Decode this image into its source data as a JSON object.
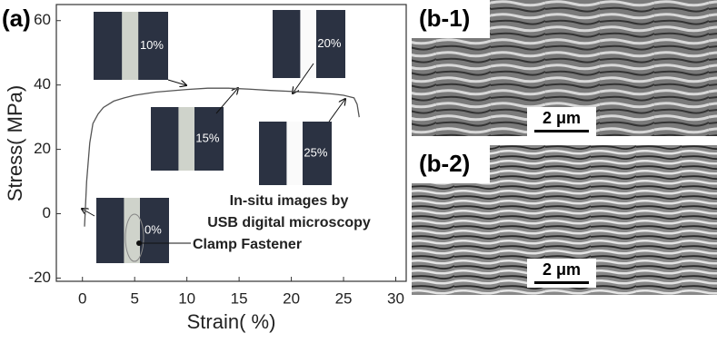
{
  "chart_data": {
    "type": "line",
    "panel_label": "(a)",
    "xlabel": "Strain( %)",
    "ylabel": "Stress( MPa)",
    "x": [
      0.2,
      0.4,
      0.7,
      1,
      1.5,
      2,
      3,
      4,
      5,
      7,
      10,
      12,
      14,
      16,
      18,
      20,
      22,
      24,
      25,
      26,
      26.3,
      26.5
    ],
    "values": [
      -4,
      10,
      22,
      28,
      31,
      33,
      35,
      36,
      36.8,
      37.8,
      38.6,
      39,
      39,
      38.7,
      38.3,
      38,
      37.7,
      37.2,
      36.8,
      36,
      34,
      30
    ],
    "color": "#555555",
    "xlim": [
      -2.5,
      31
    ],
    "ylim": [
      -21,
      65
    ],
    "xticks": [
      0,
      5,
      10,
      15,
      20,
      25,
      30
    ],
    "yticks": [
      -20,
      0,
      20,
      40,
      60
    ],
    "insets": [
      "10%",
      "20%",
      "15%",
      "25%",
      "0%"
    ],
    "annotations": [
      "In-situ images by",
      "USB digital microscopy",
      "Clamp Fastener"
    ]
  },
  "panels": [
    {
      "label": "(b-1)",
      "scale": "2 μm"
    },
    {
      "label": "(b-2)",
      "scale": "2 μm"
    }
  ]
}
